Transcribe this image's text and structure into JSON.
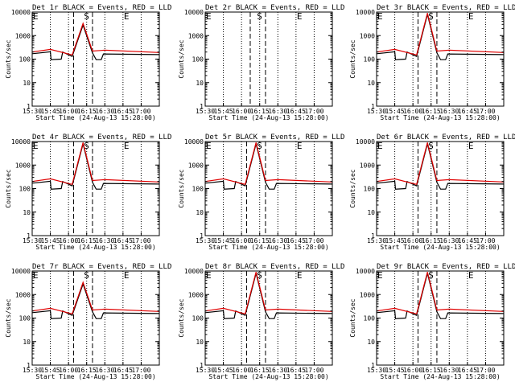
{
  "chart_data": {
    "type": "line",
    "grid_layout": "3x3",
    "xlabel": "Start Time (24-Aug-13 15:28:00)",
    "ylabel": "Counts/sec",
    "yscale": "log",
    "ylim": [
      1,
      10000
    ],
    "xlim": [
      15.5,
      17.25
    ],
    "ytick_labels": [
      "1",
      "10",
      "100",
      "1000",
      "10000"
    ],
    "xtick_values": [
      15.5,
      15.75,
      16.0,
      16.25,
      16.5,
      16.75,
      17.0
    ],
    "xtick_labels": [
      "15:30",
      "15:45",
      "16:00",
      "16:15",
      "16:30",
      "16:45",
      "17:00"
    ],
    "series_names": [
      "Events",
      "LLD"
    ],
    "colors": {
      "events": "#000000",
      "lld": "#e00000"
    },
    "panels": [
      {
        "title": "Det 1r BLACK = Events, RED = LLD",
        "has_data": true,
        "markers": [
          {
            "label": "E",
            "x": 15.5
          },
          {
            "label": "S",
            "x": 16.2
          },
          {
            "label": "E",
            "x": 16.75
          }
        ],
        "dashed_x": [
          16.07,
          16.33
        ],
        "dotted_x": [
          15.75,
          16.0,
          16.25,
          16.5,
          16.75,
          17.0
        ],
        "events": {
          "x": [
            15.5,
            15.75,
            15.76,
            15.9,
            15.92,
            16.05,
            16.2,
            16.33,
            16.38,
            16.45,
            16.48,
            17.25
          ],
          "y": [
            170,
            205,
            95,
            100,
            200,
            130,
            2800,
            185,
            95,
            95,
            165,
            155
          ]
        },
        "lld": {
          "x": [
            15.5,
            15.75,
            16.05,
            16.2,
            16.33,
            16.5,
            17.25
          ],
          "y": [
            200,
            260,
            150,
            3300,
            220,
            240,
            190
          ]
        }
      },
      {
        "title": "Det 2r BLACK = Events, RED = LLD",
        "has_data": false,
        "markers": [
          {
            "label": "E",
            "x": 15.5
          },
          {
            "label": "S",
            "x": 16.2
          },
          {
            "label": "E",
            "x": 16.75
          }
        ],
        "dashed_x": [
          16.12,
          16.33
        ],
        "dotted_x": [
          15.75,
          16.0,
          16.25,
          16.5,
          16.75,
          17.0
        ],
        "events": {
          "x": [],
          "y": []
        },
        "lld": {
          "x": [],
          "y": []
        }
      },
      {
        "title": "Det 3r BLACK = Events, RED = LLD",
        "has_data": true,
        "markers": [
          {
            "label": "E",
            "x": 15.5
          },
          {
            "label": "S",
            "x": 16.2
          },
          {
            "label": "E",
            "x": 16.75
          }
        ],
        "dashed_x": [
          16.07,
          16.33
        ],
        "dotted_x": [
          15.75,
          16.0,
          16.25,
          16.5,
          16.75,
          17.0
        ],
        "events": {
          "x": [
            15.5,
            15.75,
            15.76,
            15.9,
            15.92,
            16.05,
            16.2,
            16.33,
            16.38,
            16.45,
            16.48,
            17.25
          ],
          "y": [
            170,
            205,
            95,
            100,
            200,
            130,
            8000,
            185,
            95,
            95,
            165,
            155
          ]
        },
        "lld": {
          "x": [
            15.5,
            15.75,
            16.05,
            16.2,
            16.33,
            16.5,
            17.25
          ],
          "y": [
            200,
            260,
            150,
            9000,
            220,
            240,
            190
          ]
        }
      },
      {
        "title": "Det 4r BLACK = Events, RED = LLD",
        "has_data": true,
        "markers": [
          {
            "label": "E",
            "x": 15.5
          },
          {
            "label": "S",
            "x": 16.2
          },
          {
            "label": "E",
            "x": 16.75
          }
        ],
        "dashed_x": [
          16.07,
          16.33
        ],
        "dotted_x": [
          15.75,
          16.0,
          16.25,
          16.5,
          16.75,
          17.0
        ],
        "events": {
          "x": [
            15.5,
            15.75,
            15.76,
            15.9,
            15.92,
            16.05,
            16.2,
            16.33,
            16.38,
            16.45,
            16.48,
            17.25
          ],
          "y": [
            170,
            205,
            95,
            100,
            200,
            130,
            8000,
            185,
            95,
            95,
            165,
            155
          ]
        },
        "lld": {
          "x": [
            15.5,
            15.75,
            16.05,
            16.2,
            16.33,
            16.5,
            17.25
          ],
          "y": [
            200,
            260,
            150,
            9000,
            220,
            240,
            190
          ]
        }
      },
      {
        "title": "Det 5r BLACK = Events, RED = LLD",
        "has_data": true,
        "markers": [
          {
            "label": "E",
            "x": 15.5
          },
          {
            "label": "S",
            "x": 16.2
          },
          {
            "label": "E",
            "x": 16.75
          }
        ],
        "dashed_x": [
          16.07,
          16.33
        ],
        "dotted_x": [
          15.75,
          16.0,
          16.25,
          16.5,
          16.75,
          17.0
        ],
        "events": {
          "x": [
            15.5,
            15.75,
            15.76,
            15.9,
            15.92,
            16.05,
            16.2,
            16.33,
            16.38,
            16.45,
            16.48,
            17.25
          ],
          "y": [
            170,
            205,
            95,
            100,
            200,
            130,
            8000,
            185,
            95,
            95,
            165,
            155
          ]
        },
        "lld": {
          "x": [
            15.5,
            15.75,
            16.05,
            16.2,
            16.33,
            16.5,
            17.25
          ],
          "y": [
            200,
            260,
            150,
            9000,
            220,
            240,
            190
          ]
        }
      },
      {
        "title": "Det 6r BLACK = Events, RED = LLD",
        "has_data": true,
        "markers": [
          {
            "label": "E",
            "x": 15.5
          },
          {
            "label": "S",
            "x": 16.2
          },
          {
            "label": "E",
            "x": 16.75
          }
        ],
        "dashed_x": [
          16.07,
          16.33
        ],
        "dotted_x": [
          15.75,
          16.0,
          16.25,
          16.5,
          16.75,
          17.0
        ],
        "events": {
          "x": [
            15.5,
            15.75,
            15.76,
            15.9,
            15.92,
            16.05,
            16.2,
            16.33,
            16.38,
            16.45,
            16.48,
            17.25
          ],
          "y": [
            170,
            205,
            95,
            100,
            200,
            130,
            8000,
            185,
            95,
            95,
            165,
            155
          ]
        },
        "lld": {
          "x": [
            15.5,
            15.75,
            16.05,
            16.2,
            16.33,
            16.5,
            17.25
          ],
          "y": [
            200,
            260,
            150,
            9000,
            220,
            240,
            190
          ]
        }
      },
      {
        "title": "Det 7r BLACK = Events, RED = LLD",
        "has_data": true,
        "markers": [
          {
            "label": "E",
            "x": 15.5
          },
          {
            "label": "S",
            "x": 16.2
          },
          {
            "label": "E",
            "x": 16.75
          }
        ],
        "dashed_x": [
          16.07,
          16.33
        ],
        "dotted_x": [
          15.75,
          16.0,
          16.25,
          16.5,
          16.75,
          17.0
        ],
        "events": {
          "x": [
            15.5,
            15.75,
            15.76,
            15.9,
            15.92,
            16.05,
            16.2,
            16.33,
            16.38,
            16.45,
            16.48,
            17.25
          ],
          "y": [
            170,
            205,
            95,
            100,
            200,
            130,
            2800,
            185,
            95,
            95,
            165,
            155
          ]
        },
        "lld": {
          "x": [
            15.5,
            15.75,
            16.05,
            16.2,
            16.33,
            16.5,
            17.25
          ],
          "y": [
            200,
            260,
            150,
            3300,
            220,
            240,
            190
          ]
        }
      },
      {
        "title": "Det 8r BLACK = Events, RED = LLD",
        "has_data": true,
        "markers": [
          {
            "label": "E",
            "x": 15.5
          },
          {
            "label": "S",
            "x": 16.2
          },
          {
            "label": "E",
            "x": 16.75
          }
        ],
        "dashed_x": [
          16.07,
          16.33
        ],
        "dotted_x": [
          15.75,
          16.0,
          16.25,
          16.5,
          16.75,
          17.0
        ],
        "events": {
          "x": [
            15.5,
            15.75,
            15.76,
            15.9,
            15.92,
            16.05,
            16.2,
            16.33,
            16.38,
            16.45,
            16.48,
            17.25
          ],
          "y": [
            170,
            205,
            95,
            100,
            200,
            130,
            8000,
            185,
            95,
            95,
            165,
            155
          ]
        },
        "lld": {
          "x": [
            15.5,
            15.75,
            16.05,
            16.2,
            16.33,
            16.5,
            17.25
          ],
          "y": [
            200,
            260,
            150,
            9000,
            220,
            240,
            190
          ]
        }
      },
      {
        "title": "Det 9r BLACK = Events, RED = LLD",
        "has_data": true,
        "markers": [
          {
            "label": "E",
            "x": 15.5
          },
          {
            "label": "S",
            "x": 16.2
          },
          {
            "label": "E",
            "x": 16.75
          }
        ],
        "dashed_x": [
          16.07,
          16.33
        ],
        "dotted_x": [
          15.75,
          16.0,
          16.25,
          16.5,
          16.75,
          17.0
        ],
        "events": {
          "x": [
            15.5,
            15.75,
            15.76,
            15.9,
            15.92,
            16.05,
            16.2,
            16.33,
            16.38,
            16.45,
            16.48,
            17.25
          ],
          "y": [
            170,
            205,
            95,
            100,
            200,
            130,
            8000,
            185,
            95,
            95,
            165,
            155
          ]
        },
        "lld": {
          "x": [
            15.5,
            15.75,
            16.05,
            16.2,
            16.33,
            16.5,
            17.25
          ],
          "y": [
            200,
            260,
            150,
            9000,
            220,
            240,
            190
          ]
        }
      }
    ]
  }
}
